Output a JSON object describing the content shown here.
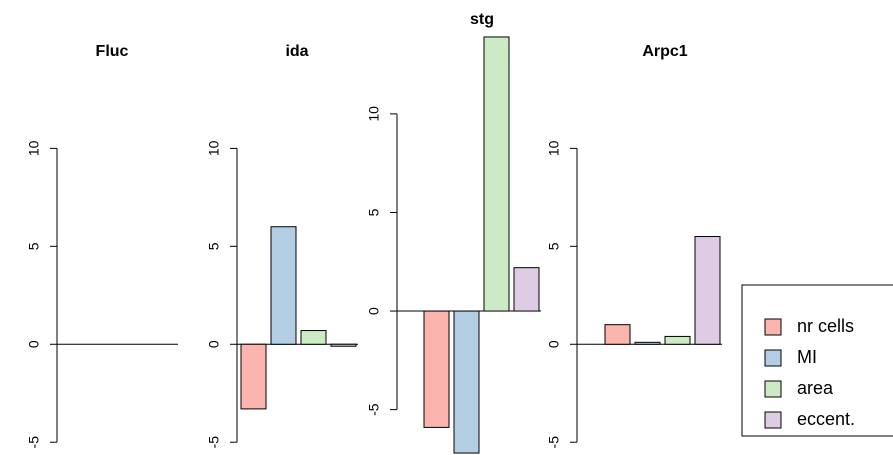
{
  "chart_data": [
    {
      "type": "bar",
      "title": "Fluc",
      "values": [
        0,
        0,
        0,
        0
      ],
      "ylim": [
        -5.5,
        11.5
      ],
      "yticks": [
        -5,
        0,
        5,
        10
      ]
    },
    {
      "type": "bar",
      "title": "ida",
      "values": [
        -3.3,
        6.0,
        0.7,
        -0.1
      ],
      "ylim": [
        -5.5,
        11.5
      ],
      "yticks": [
        -5,
        0,
        5,
        10
      ]
    },
    {
      "type": "bar",
      "title": "stg",
      "values": [
        -5.9,
        -7.2,
        13.9,
        2.2
      ],
      "ylim": [
        -7.3,
        14
      ],
      "yticks": [
        -5,
        0,
        5,
        10
      ]
    },
    {
      "type": "bar",
      "title": "Arpc1",
      "values": [
        1.0,
        0.1,
        0.4,
        5.5
      ],
      "ylim": [
        -5.5,
        11.5
      ],
      "yticks": [
        -5,
        0,
        5,
        10
      ]
    }
  ],
  "legend": {
    "labels": [
      "nr cells",
      "MI",
      "area",
      "eccent."
    ],
    "colors": [
      "#FBB4AE",
      "#B3CDE3",
      "#CCEBC5",
      "#DECBE4"
    ],
    "position": "right"
  }
}
